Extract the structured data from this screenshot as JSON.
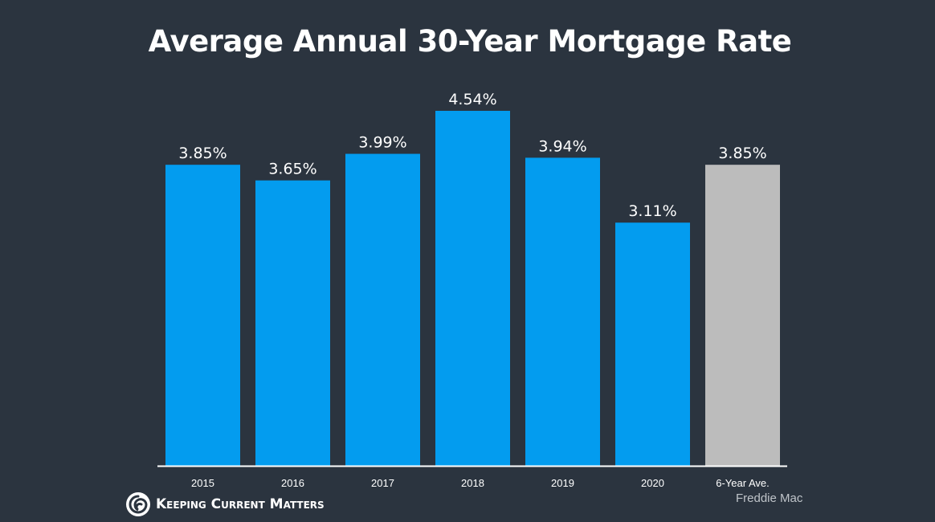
{
  "chart_data": {
    "type": "bar",
    "title": "Average Annual 30-Year Mortgage Rate",
    "categories": [
      "2015",
      "2016",
      "2017",
      "2018",
      "2019",
      "2020",
      "6-Year Ave."
    ],
    "values": [
      3.85,
      3.65,
      3.99,
      4.54,
      3.94,
      3.11,
      3.85
    ],
    "data_labels": [
      "3.85%",
      "3.65%",
      "3.99%",
      "4.54%",
      "3.94%",
      "3.11%",
      "3.85%"
    ],
    "bar_colors": [
      "#039cef",
      "#039cef",
      "#039cef",
      "#039cef",
      "#039cef",
      "#039cef",
      "#bcbcbc"
    ],
    "ylim": [
      0,
      4.54
    ],
    "grid": false,
    "xlabel": "",
    "ylabel": ""
  },
  "branding": {
    "logo_text": "Keeping Current Matters",
    "source": "Freddie Mac"
  },
  "colors": {
    "background": "#2b343f",
    "bar": "#039cef",
    "average_bar": "#bcbcbc",
    "text": "#ffffff"
  }
}
